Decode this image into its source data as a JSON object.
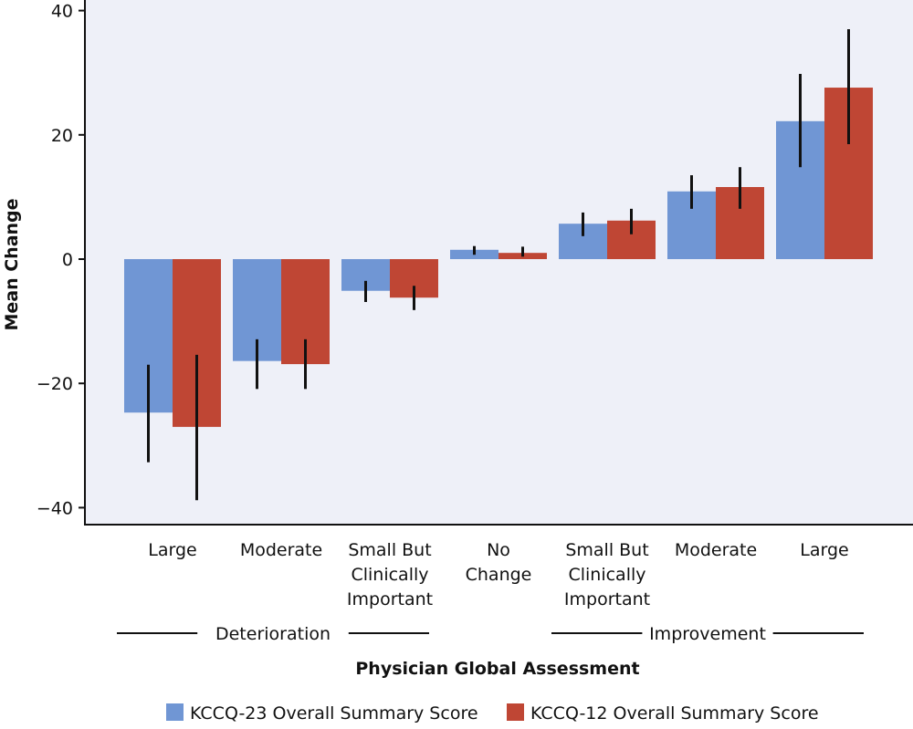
{
  "chart_data": {
    "type": "bar",
    "ylabel": "Mean Change",
    "xlabel": "Physician Global Assessment",
    "ylim": [
      -40,
      40
    ],
    "yticks": [
      "40",
      "20",
      "0",
      "−20",
      "−40"
    ],
    "ytick_values": [
      40,
      20,
      0,
      -20,
      -40
    ],
    "grid": false,
    "legend_position": "bottom",
    "categories": [
      [
        "Large"
      ],
      [
        "Moderate"
      ],
      [
        "Small But",
        "Clinically",
        "Important"
      ],
      [
        "No",
        "Change"
      ],
      [
        "Small But",
        "Clinically",
        "Important"
      ],
      [
        "Moderate"
      ],
      [
        "Large"
      ]
    ],
    "groups": [
      {
        "label": "Deterioration",
        "categories": [
          0,
          1,
          2
        ]
      },
      {
        "label": "Improvement",
        "categories": [
          4,
          5,
          6
        ]
      }
    ],
    "series": [
      {
        "name": "KCCQ-23 Overall Summary Score",
        "color": "#7096d4",
        "values": [
          -24.7,
          -16.4,
          -5.1,
          1.5,
          5.7,
          10.9,
          22.2
        ],
        "ci_low": [
          -32.7,
          -20.9,
          -6.9,
          0.7,
          3.7,
          8.1,
          14.8
        ],
        "ci_high": [
          -17.0,
          -12.9,
          -3.5,
          2.1,
          7.5,
          13.5,
          29.8
        ]
      },
      {
        "name": "KCCQ-12 Overall Summary Score",
        "color": "#bf4634",
        "values": [
          -27.0,
          -16.9,
          -6.2,
          1.0,
          6.2,
          11.6,
          27.6
        ],
        "ci_low": [
          -38.8,
          -20.9,
          -8.2,
          0.4,
          4.0,
          8.1,
          18.5
        ],
        "ci_high": [
          -15.4,
          -12.9,
          -4.3,
          2.0,
          8.1,
          14.8,
          37.0
        ]
      }
    ]
  }
}
